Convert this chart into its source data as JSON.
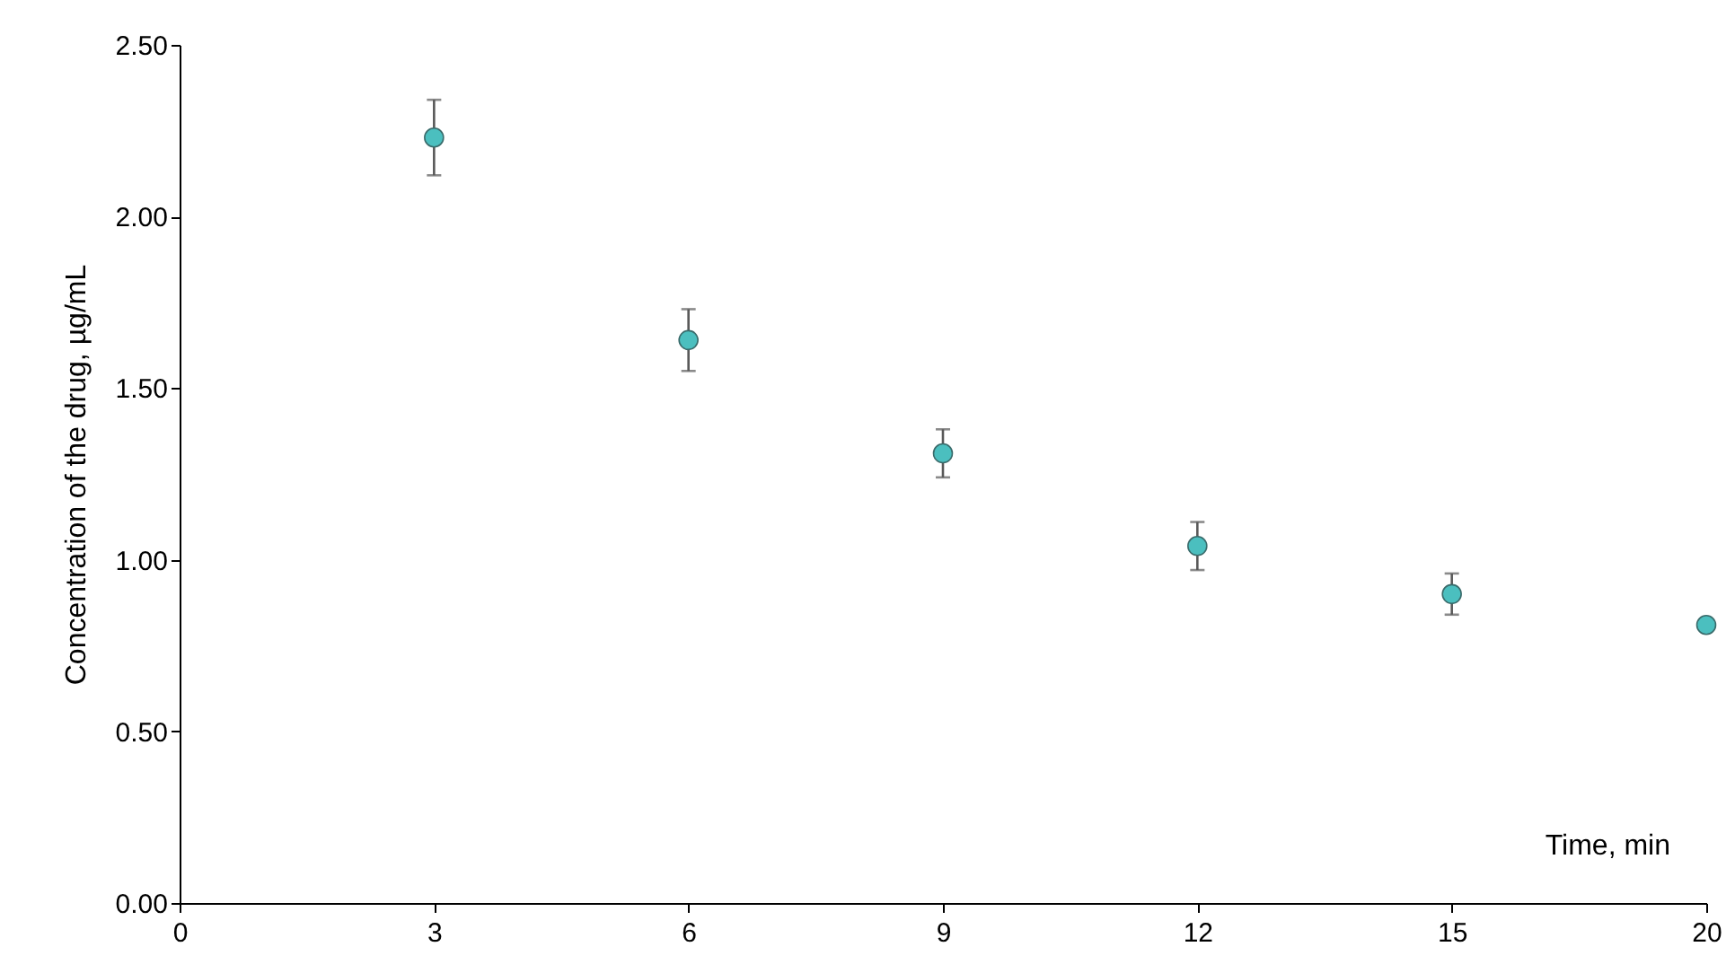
{
  "chart_data": {
    "type": "scatter",
    "xlabel": "Time, min",
    "ylabel": "Concentration of the drug, µg/mL",
    "categories": [
      "0",
      "3",
      "6",
      "9",
      "12",
      "15",
      "20"
    ],
    "series": [
      {
        "color": "#4bbfbf",
        "values": [
          null,
          2.23,
          1.64,
          1.31,
          1.04,
          0.9,
          0.81
        ],
        "errors": [
          null,
          0.11,
          0.09,
          0.07,
          0.07,
          0.06,
          null
        ]
      }
    ],
    "ylim": [
      0,
      2.5
    ],
    "yticks": [
      {
        "value": 0,
        "label": "0.00"
      },
      {
        "value": 0.5,
        "label": "0.50"
      },
      {
        "value": 1,
        "label": "1.00"
      },
      {
        "value": 1.5,
        "label": "1.50"
      },
      {
        "value": 2,
        "label": "2.00"
      },
      {
        "value": 2.5,
        "label": "2.50"
      }
    ],
    "marker": "circle"
  }
}
